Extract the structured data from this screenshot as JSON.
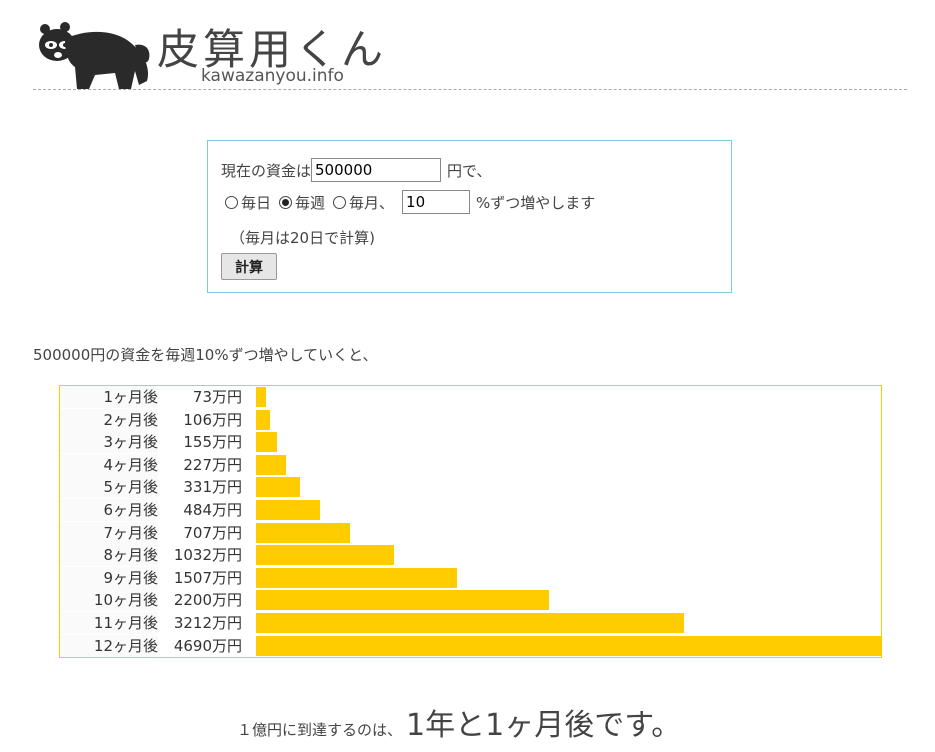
{
  "header": {
    "title": "皮算用くん",
    "url": "kawazanyou.info",
    "logo_icon": "tanuki-icon"
  },
  "form": {
    "label_prefix": "現在の資金は",
    "amount_value": "500000",
    "label_yen": "円で、",
    "radio_options": [
      {
        "label": "毎日",
        "checked": false
      },
      {
        "label": "毎週",
        "checked": true
      },
      {
        "label": "毎月、",
        "checked": false
      }
    ],
    "rate_value": "10",
    "rate_suffix": "%ずつ増やします",
    "note": "（毎月は20日で計算)",
    "calc_button": "計算"
  },
  "result": {
    "sentence": "500000円の資金を毎週10%ずつ増やしていくと、",
    "rows": [
      {
        "month": "1ヶ月後",
        "amount": "73万円",
        "value": 73
      },
      {
        "month": "2ヶ月後",
        "amount": "106万円",
        "value": 106
      },
      {
        "month": "3ヶ月後",
        "amount": "155万円",
        "value": 155
      },
      {
        "month": "4ヶ月後",
        "amount": "227万円",
        "value": 227
      },
      {
        "month": "5ヶ月後",
        "amount": "331万円",
        "value": 331
      },
      {
        "month": "6ヶ月後",
        "amount": "484万円",
        "value": 484
      },
      {
        "month": "7ヶ月後",
        "amount": "707万円",
        "value": 707
      },
      {
        "month": "8ヶ月後",
        "amount": "1032万円",
        "value": 1032
      },
      {
        "month": "9ヶ月後",
        "amount": "1507万円",
        "value": 1507
      },
      {
        "month": "10ヶ月後",
        "amount": "2200万円",
        "value": 2200
      },
      {
        "month": "11ヶ月後",
        "amount": "3212万円",
        "value": 3212
      },
      {
        "month": "12ヶ月後",
        "amount": "4690万円",
        "value": 4690
      }
    ],
    "bar_color": "#ffcc00",
    "conclusion_prefix": "１億円に到達するのは、",
    "conclusion_result": "1年と1ヶ月後です。"
  }
}
